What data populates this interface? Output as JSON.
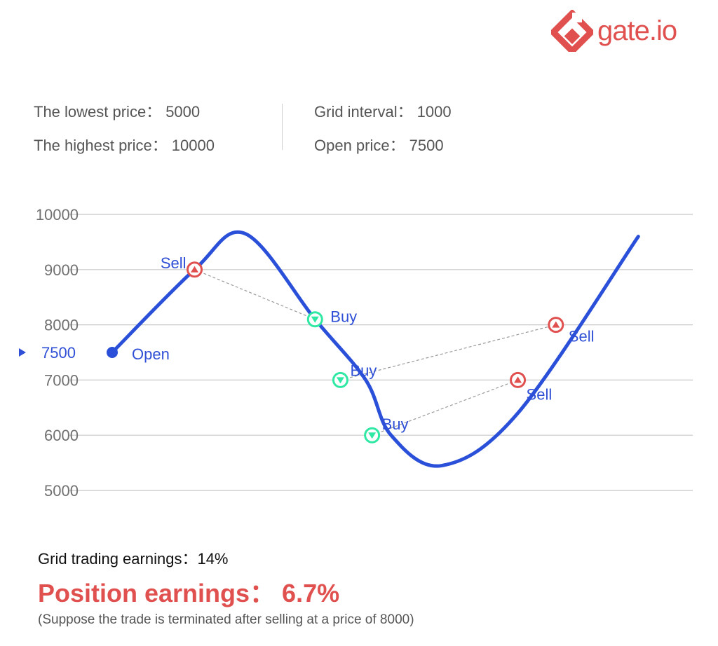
{
  "brand": {
    "name": "gate.io",
    "color": "#e0504f",
    "icon": "gate-diamond-logo-icon"
  },
  "params": {
    "lowest_label": "The lowest price：",
    "lowest_value": "5000",
    "highest_label": "The highest price：",
    "highest_value": "10000",
    "interval_label": "Grid interval：",
    "interval_value": "1000",
    "open_label": "Open price：",
    "open_value": "7500"
  },
  "chart_data": {
    "type": "line",
    "ylim": [
      5000,
      10000
    ],
    "yticks": [
      "10000",
      "9000",
      "8000",
      "7000",
      "6000",
      "5000"
    ],
    "open_marker": {
      "label": "7500",
      "value": 7500,
      "color": "#2f4fd6",
      "icon": "triangle-right-icon"
    },
    "curve": {
      "name": "",
      "color": "#2a4fd8",
      "x": [
        0,
        1.3,
        2.1,
        3.2,
        4,
        4.4,
        5.2,
        6.4,
        8.3
      ],
      "y": [
        7500,
        9000,
        9650,
        8100,
        7000,
        6000,
        5450,
        6400,
        9600
      ]
    },
    "points": [
      {
        "label": "Open",
        "type": "open",
        "x": 0,
        "y": 7500
      },
      {
        "label": "Sell",
        "type": "sell",
        "x": 1.3,
        "y": 9000
      },
      {
        "label": "Buy",
        "type": "buy",
        "x": 3.2,
        "y": 8100
      },
      {
        "label": "Buy",
        "type": "buy",
        "x": 3.6,
        "y": 7000
      },
      {
        "label": "Buy",
        "type": "buy",
        "x": 4.1,
        "y": 6000
      },
      {
        "label": "Sell",
        "type": "sell",
        "x": 6.4,
        "y": 7000
      },
      {
        "label": "Sell",
        "type": "sell",
        "x": 7.0,
        "y": 8000
      }
    ],
    "links": [
      [
        1,
        2
      ],
      [
        3,
        6
      ],
      [
        4,
        5
      ]
    ],
    "colors": {
      "sell": "#e0504f",
      "buy": "#2ee8a4",
      "label": "#2f4fd6",
      "axis": "#707070",
      "grid": "#c8c8c8"
    }
  },
  "earnings": {
    "grid_label": "Grid trading earnings：",
    "grid_value": "14%",
    "position_label": "Position earnings：",
    "position_value": "6.7%",
    "note": "(Suppose the trade is terminated after selling at a price of 8000)"
  }
}
